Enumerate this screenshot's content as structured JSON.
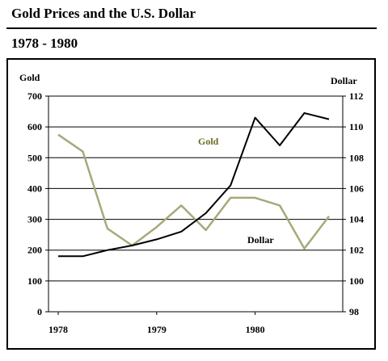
{
  "header": {
    "title": "Gold Prices and the U.S. Dollar",
    "subtitle": "1978 - 1980"
  },
  "chart_data": {
    "type": "line",
    "title": "Gold Prices and the U.S. Dollar",
    "subtitle": "1978 - 1980",
    "y_left_label": "Gold",
    "y_right_label": "Dollar",
    "y_left_range": [
      0,
      700
    ],
    "y_right_range": [
      98,
      112
    ],
    "y_left_ticks": [
      "0",
      "100",
      "200",
      "300",
      "400",
      "500",
      "600",
      "700"
    ],
    "y_right_ticks": [
      "98",
      "100",
      "102",
      "104",
      "106",
      "108",
      "110",
      "112"
    ],
    "x_ticks": [
      "1978",
      "1979",
      "1980"
    ],
    "x_tick_positions": [
      0,
      3,
      6
    ],
    "grid": "horizontal",
    "colors": {
      "gold": "#000000",
      "dollar": "#a8a87a",
      "grid": "#000000"
    },
    "series": [
      {
        "name": "Gold",
        "axis": "left",
        "x": [
          0,
          0.75,
          1.5,
          2.25,
          3.0,
          3.75,
          4.5,
          5.25,
          6.0,
          6.75,
          7.5,
          8.25
        ],
        "values": [
          180,
          180,
          200,
          215,
          235,
          260,
          320,
          410,
          630,
          540,
          645,
          625
        ]
      },
      {
        "name": "Dollar",
        "axis": "right",
        "x": [
          0,
          0.75,
          1.5,
          2.25,
          3.0,
          3.75,
          4.5,
          5.25,
          6.0,
          6.75,
          7.5,
          8.25
        ],
        "values": [
          109.5,
          108.4,
          103.4,
          102.3,
          103.5,
          104.9,
          103.3,
          105.4,
          105.4,
          104.9,
          102.1,
          104.2
        ]
      }
    ],
    "annotations": [
      {
        "text": "Gold",
        "series": "Gold"
      },
      {
        "text": "Dollar",
        "series": "Dollar"
      }
    ]
  }
}
